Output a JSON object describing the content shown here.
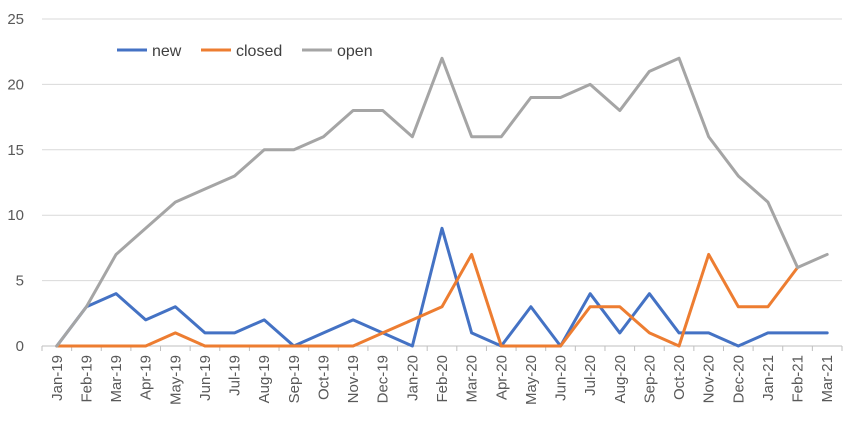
{
  "chart_data": {
    "type": "line",
    "title": "",
    "xlabel": "",
    "ylabel": "",
    "ylim": [
      0,
      25
    ],
    "yticks": [
      "0",
      "5",
      "10",
      "15",
      "20",
      "25"
    ],
    "grid": true,
    "legend": "top-left",
    "categories": [
      "Jan-19",
      "Feb-19",
      "Mar-19",
      "Apr-19",
      "May-19",
      "Jun-19",
      "Jul-19",
      "Aug-19",
      "Sep-19",
      "Oct-19",
      "Nov-19",
      "Dec-19",
      "Jan-20",
      "Feb-20",
      "Mar-20",
      "Apr-20",
      "May-20",
      "Jun-20",
      "Jul-20",
      "Aug-20",
      "Sep-20",
      "Oct-20",
      "Nov-20",
      "Dec-20",
      "Jan-21",
      "Feb-21",
      "Mar-21"
    ],
    "series": [
      {
        "name": "new",
        "color": "#4472C4",
        "values": [
          0,
          3,
          4,
          2,
          3,
          1,
          1,
          2,
          0,
          1,
          2,
          1,
          0,
          9,
          1,
          0,
          3,
          0,
          4,
          1,
          4,
          1,
          1,
          0,
          1,
          1,
          1
        ]
      },
      {
        "name": "closed",
        "color": "#ED7D31",
        "values": [
          0,
          0,
          0,
          0,
          1,
          0,
          0,
          0,
          0,
          0,
          0,
          1,
          2,
          3,
          7,
          0,
          0,
          0,
          3,
          3,
          1,
          0,
          7,
          3,
          3,
          6,
          null
        ]
      },
      {
        "name": "open",
        "color": "#A5A5A5",
        "values": [
          0,
          3,
          7,
          9,
          11,
          12,
          13,
          15,
          15,
          16,
          18,
          18,
          16,
          22,
          16,
          16,
          19,
          19,
          20,
          18,
          21,
          22,
          16,
          13,
          11,
          6,
          7
        ]
      }
    ]
  }
}
